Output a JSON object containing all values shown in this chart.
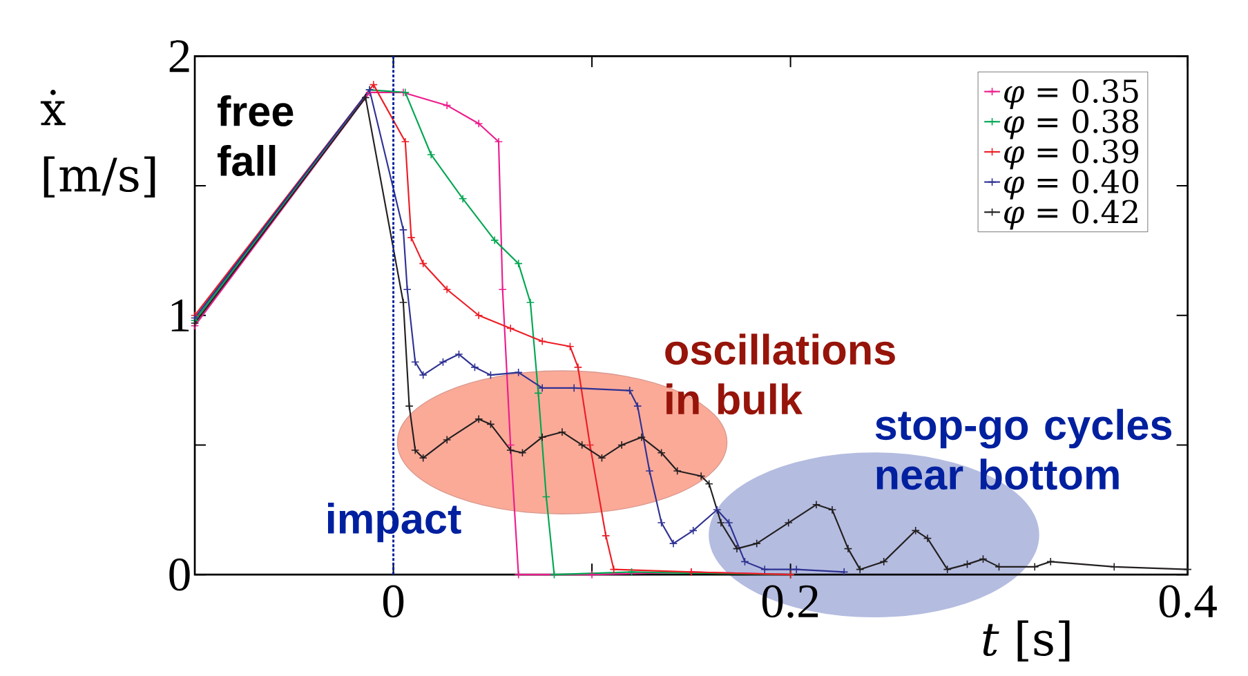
{
  "chart_data": {
    "type": "line",
    "xlabel": "*t* [s]",
    "ylabel": "ẋ [m/s]",
    "series": [
      {
        "name": "*φ* = 0.35",
        "color": "#ec1c8c",
        "x": [
          -0.1,
          -0.012,
          0.005,
          0.027,
          0.043,
          0.053,
          0.055,
          0.059,
          0.063,
          0.1,
          0.15,
          0.2
        ],
        "values": [
          0.96,
          1.86,
          1.86,
          1.81,
          1.74,
          1.67,
          1.1,
          0.5,
          0.0,
          0.0,
          0.01,
          0.0
        ]
      },
      {
        "name": "*φ* = 0.38",
        "color": "#00a651",
        "x": [
          -0.1,
          -0.012,
          0.006,
          0.019,
          0.035,
          0.051,
          0.063,
          0.069,
          0.073,
          0.077,
          0.081,
          0.12,
          0.2
        ],
        "values": [
          0.98,
          1.87,
          1.86,
          1.62,
          1.45,
          1.29,
          1.2,
          1.05,
          0.7,
          0.3,
          0.0,
          0.01,
          0.0
        ]
      },
      {
        "name": "*φ* = 0.39",
        "color": "#ed1c24",
        "x": [
          -0.1,
          -0.01,
          0.006,
          0.009,
          0.015,
          0.027,
          0.043,
          0.059,
          0.075,
          0.089,
          0.093,
          0.099,
          0.107,
          0.111,
          0.15,
          0.2
        ],
        "values": [
          1.0,
          1.89,
          1.67,
          1.3,
          1.2,
          1.1,
          1.0,
          0.95,
          0.9,
          0.88,
          0.8,
          0.5,
          0.15,
          0.02,
          0.01,
          0.0
        ]
      },
      {
        "name": "*φ* = 0.40",
        "color": "#2e3192",
        "x": [
          -0.1,
          -0.012,
          0.005,
          0.007,
          0.011,
          0.015,
          0.025,
          0.033,
          0.041,
          0.049,
          0.063,
          0.075,
          0.091,
          0.119,
          0.123,
          0.129,
          0.135,
          0.141,
          0.151,
          0.163,
          0.169,
          0.177,
          0.187,
          0.203,
          0.227
        ],
        "values": [
          0.99,
          1.87,
          1.33,
          1.1,
          0.82,
          0.77,
          0.82,
          0.85,
          0.8,
          0.77,
          0.78,
          0.72,
          0.72,
          0.71,
          0.65,
          0.4,
          0.2,
          0.12,
          0.17,
          0.25,
          0.2,
          0.05,
          0.02,
          0.02,
          0.01
        ]
      },
      {
        "name": "*φ* = 0.42",
        "color": "#231f20",
        "x": [
          -0.1,
          -0.014,
          0.005,
          0.008,
          0.011,
          0.015,
          0.027,
          0.043,
          0.049,
          0.059,
          0.065,
          0.075,
          0.085,
          0.095,
          0.105,
          0.115,
          0.125,
          0.135,
          0.143,
          0.155,
          0.159,
          0.165,
          0.173,
          0.183,
          0.199,
          0.213,
          0.221,
          0.229,
          0.235,
          0.247,
          0.263,
          0.269,
          0.279,
          0.289,
          0.297,
          0.305,
          0.323,
          0.331,
          0.363,
          0.4
        ],
        "values": [
          0.97,
          1.84,
          1.05,
          0.65,
          0.48,
          0.45,
          0.52,
          0.6,
          0.58,
          0.48,
          0.47,
          0.53,
          0.55,
          0.5,
          0.45,
          0.5,
          0.53,
          0.47,
          0.4,
          0.38,
          0.35,
          0.2,
          0.1,
          0.12,
          0.2,
          0.27,
          0.25,
          0.1,
          0.02,
          0.05,
          0.17,
          0.14,
          0.02,
          0.04,
          0.06,
          0.03,
          0.03,
          0.05,
          0.03,
          0.02
        ]
      }
    ],
    "xlim": [
      -0.1,
      0.4
    ],
    "ylim": [
      0,
      2
    ],
    "xticks": [
      0,
      {
        "value": 0.1,
        "label": null
      },
      0.2,
      0.4
    ],
    "yticks": [
      0,
      {
        "value": 0.5,
        "label": null
      },
      1,
      {
        "value": 1.5,
        "label": null
      },
      2
    ],
    "ref_lines": [
      {
        "axis": "x",
        "value": 0,
        "label": "impact",
        "color": "#00209f",
        "line_style": "dotted"
      }
    ],
    "annotations": [
      "free fall",
      "oscillations in bulk",
      "stop-go cycles near bottom"
    ],
    "marker": "cross",
    "line_style": "solid",
    "grid": false,
    "legend": "top right"
  }
}
